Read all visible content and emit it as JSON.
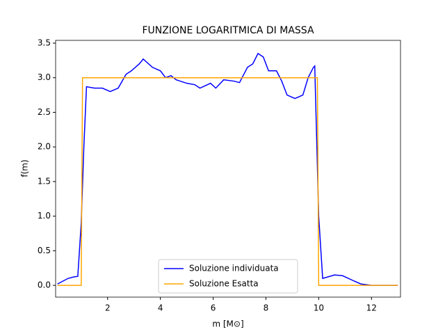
{
  "chart_data": {
    "type": "line",
    "title": "FUNZIONE LOGARITMICA DI MASSA",
    "xlabel": "m [M⊙]",
    "ylabel": "f(m)",
    "xlim": [
      0.03,
      13.1
    ],
    "ylim": [
      -0.17,
      3.54
    ],
    "xticks": [
      2,
      4,
      6,
      8,
      10,
      12
    ],
    "yticks": [
      {
        "value": 0,
        "label": "0.0"
      },
      {
        "value": 0.5,
        "label": "0.5"
      },
      {
        "value": 1,
        "label": "1.0"
      },
      {
        "value": 1.5,
        "label": "1.5"
      },
      {
        "value": 2,
        "label": "2.0"
      },
      {
        "value": 2.5,
        "label": "2.5"
      },
      {
        "value": 3,
        "label": "3.0"
      },
      {
        "value": 3.5,
        "label": "3.5"
      }
    ],
    "legend": "lower center",
    "series": [
      {
        "name": "Soluzione individuata",
        "color": "#0000ff",
        "x": [
          0.1,
          0.3,
          0.5,
          0.7,
          0.87,
          1.0,
          1.1,
          1.2,
          1.5,
          1.8,
          2.1,
          2.4,
          2.7,
          2.9,
          3.2,
          3.35,
          3.7,
          4.0,
          4.2,
          4.4,
          4.6,
          5.0,
          5.3,
          5.5,
          5.9,
          6.1,
          6.4,
          6.8,
          7.0,
          7.3,
          7.5,
          7.7,
          7.9,
          8.1,
          8.4,
          8.6,
          8.8,
          9.1,
          9.4,
          9.6,
          9.8,
          9.85,
          10.0,
          10.15,
          10.6,
          10.9,
          11.3,
          11.6,
          12.0,
          13.0
        ],
        "values": [
          0.02,
          0.06,
          0.1,
          0.12,
          0.13,
          0.9,
          2.0,
          2.87,
          2.85,
          2.85,
          2.8,
          2.85,
          3.05,
          3.1,
          3.2,
          3.27,
          3.15,
          3.1,
          3.0,
          3.03,
          2.97,
          2.92,
          2.9,
          2.85,
          2.92,
          2.85,
          2.97,
          2.95,
          2.93,
          3.15,
          3.2,
          3.35,
          3.3,
          3.1,
          3.1,
          2.95,
          2.75,
          2.7,
          2.75,
          3.0,
          3.15,
          3.17,
          1.0,
          0.1,
          0.15,
          0.14,
          0.07,
          0.02,
          0.0,
          0.0
        ]
      },
      {
        "name": "Soluzione Esatta",
        "color": "#ffa500",
        "x": [
          0.1,
          1.0,
          1.05,
          9.95,
          10.0,
          13.0
        ],
        "values": [
          0,
          0,
          3,
          3,
          0,
          0
        ]
      }
    ]
  }
}
